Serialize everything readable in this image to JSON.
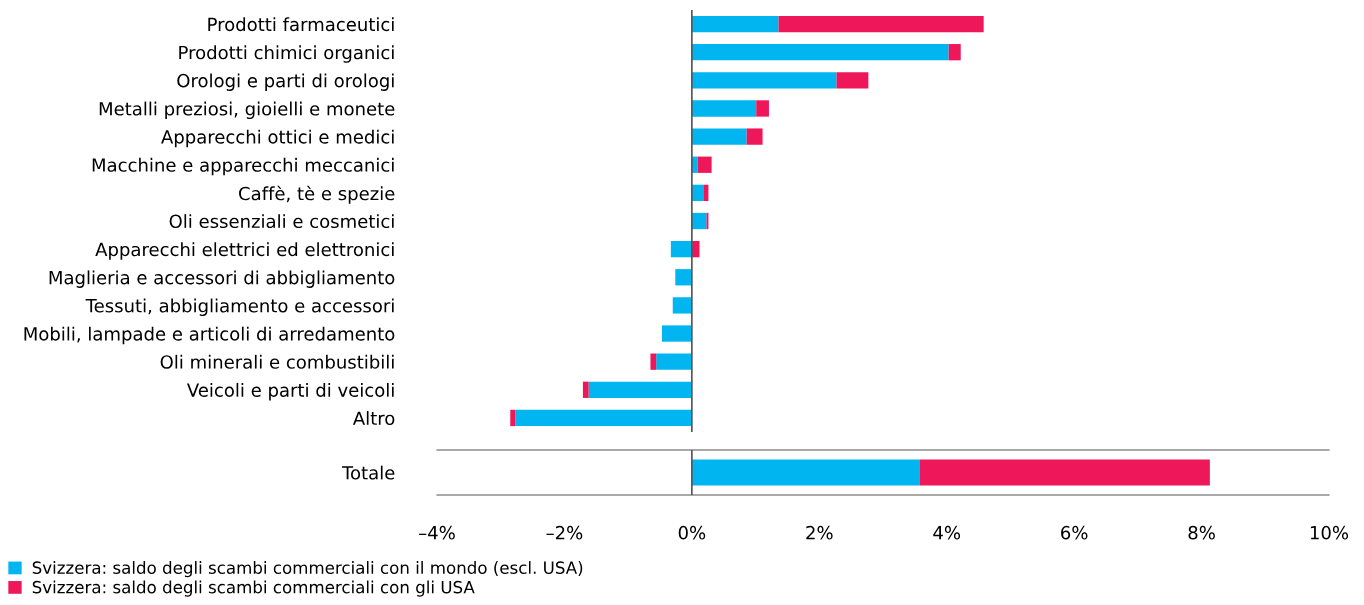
{
  "chart_data": [
    {
      "type": "bar",
      "orientation": "horizontal",
      "stacked": true,
      "legend": "bottom left",
      "grid": false,
      "tick_labels": "y",
      "categories": [
        "Prodotti farmaceutici",
        "Prodotti chimici organici",
        "Orologi e parti di orologi",
        "Metalli preziosi, gioielli e monete",
        "Apparecchi ottici e medici",
        "Macchine e apparecchi meccanici",
        "Caffè, tè e spezie",
        "Oli essenziali e cosmetici",
        "Apparecchi elettrici ed elettronici",
        "Maglieria e accessori di abbigliamento",
        "Tessuti, abbigliamento e accessori",
        "Mobili, lampade e articoli di arredamento",
        "Oli minerali e combustibili",
        "Veicoli e parti di veicoli",
        "Altro"
      ],
      "series": [
        {
          "name": "Svizzera: saldo degli scambi commerciali con il mondo (escl. USA)",
          "color": "#00b5f0",
          "values": [
            1.36,
            4.03,
            2.27,
            1.01,
            0.86,
            0.09,
            0.19,
            0.23,
            -0.33,
            -0.26,
            -0.3,
            -0.47,
            -0.56,
            -1.62,
            -2.77
          ]
        },
        {
          "name": "Svizzera: saldo degli scambi commerciali con gli USA",
          "color": "#ee175a",
          "values": [
            3.22,
            0.19,
            0.5,
            0.2,
            0.25,
            0.22,
            0.07,
            0.03,
            0.12,
            0,
            0,
            0,
            -0.09,
            -0.09,
            -0.08
          ]
        }
      ],
      "xlim": [
        -4,
        10
      ],
      "ref_lines": [
        {
          "axis": "x",
          "value": 0,
          "color": "#555555"
        }
      ]
    },
    {
      "type": "bar",
      "orientation": "horizontal",
      "stacked": true,
      "grid": false,
      "categories": [
        "Totale"
      ],
      "series": [
        {
          "color": "#00b5f0",
          "values": [
            3.58
          ]
        },
        {
          "color": "#ee175a",
          "values": [
            4.55
          ]
        }
      ],
      "xlim": [
        -4,
        10
      ],
      "xticks": [
        {
          "value": -4,
          "label": "–4%"
        },
        {
          "value": -2,
          "label": "–2%"
        },
        {
          "value": 0,
          "label": "0%"
        },
        {
          "value": 2,
          "label": "2%"
        },
        {
          "value": 4,
          "label": "4%"
        },
        {
          "value": 6,
          "label": "6%"
        },
        {
          "value": 8,
          "label": "8%"
        },
        {
          "value": 10,
          "label": "10%"
        }
      ],
      "ref_lines": [
        {
          "axis": "x",
          "value": 0,
          "color": "#555555"
        }
      ]
    }
  ]
}
